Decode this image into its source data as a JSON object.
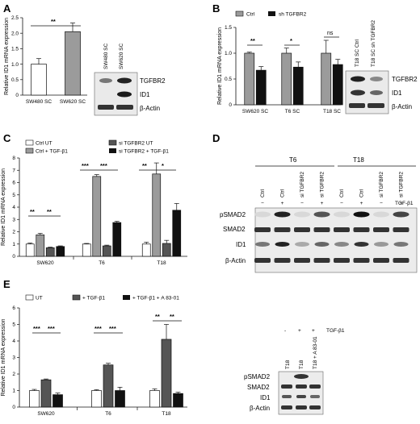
{
  "panels": {
    "A": {
      "letter": "A",
      "ylabel": "Relative ID1 mRNA expression",
      "sig": "**",
      "blot": {
        "lanes": [
          "SW480 SC",
          "SW620 SC"
        ],
        "bands": [
          "TGFBR2",
          "ID1",
          "β-Actin"
        ]
      }
    },
    "B": {
      "letter": "B",
      "ylabel": "Relative ID1 mRNA expression",
      "legend": [
        "Ctrl",
        "sh TGFBR2"
      ],
      "sigs": [
        "**",
        "*",
        "ns"
      ],
      "blot": {
        "lanes": [
          "T18 SC Ctrl",
          "T18 SC sh TGFBR2"
        ],
        "bands": [
          "TGFBR2",
          "ID1",
          "β-Actin"
        ]
      }
    },
    "C": {
      "letter": "C",
      "ylabel": "Relative ID1 mRNA expression",
      "legend": [
        "Ctrl UT",
        "Ctrl + TGF-β1",
        "si TGFBR2 UT",
        "si TGFBR2 + TGF-β1"
      ],
      "sigs": [
        "**",
        "**",
        "***",
        "***",
        "**",
        "*"
      ]
    },
    "D": {
      "letter": "D",
      "groups": [
        "T6",
        "T18"
      ],
      "lanes": [
        "Ctrl",
        "Ctrl",
        "si TGFBR2",
        "si TGFBR2",
        "Ctrl",
        "Ctrl",
        "si TGFBR2",
        "si TGFBR2"
      ],
      "treat": [
        "−",
        "+",
        "−",
        "+",
        "−",
        "+",
        "−",
        "+"
      ],
      "treat_label": "TGF-β1",
      "bands": [
        "pSMAD2",
        "SMAD2",
        "ID1",
        "β-Actin"
      ]
    },
    "E": {
      "letter": "E",
      "ylabel": "Relative ID1 mRNA expression",
      "legend": [
        "UT",
        "+ TGF-β1",
        "+ TGF-β1 + A 83-01"
      ],
      "sigs": [
        "***",
        "***",
        "***",
        "***",
        "**",
        "**"
      ],
      "blot": {
        "treat": [
          "-",
          "+",
          "+"
        ],
        "treat_label": "TGF-β1",
        "lanes": [
          "T18",
          "T18",
          "T18 + A 83-01"
        ],
        "bands": [
          "pSMAD2",
          "SMAD2",
          "ID1",
          "β-Actin"
        ]
      }
    }
  },
  "chart_data": [
    {
      "panel": "A",
      "type": "bar",
      "ylabel": "Relative ID1 mRNA expression",
      "ylim": [
        0,
        2.5
      ],
      "yticks": [
        0,
        0.5,
        1.0,
        1.5,
        2.0,
        2.5
      ],
      "categories": [
        "SW480 SC",
        "SW620 SC"
      ],
      "series": [
        {
          "values": [
            1.0,
            2.05
          ],
          "errors": [
            0.18,
            0.28
          ],
          "colors": [
            "#ffffff",
            "#9b9b9b"
          ]
        }
      ]
    },
    {
      "panel": "B",
      "type": "bar",
      "ylabel": "Relative ID1 mRNA expression",
      "ylim": [
        0,
        1.5
      ],
      "yticks": [
        0,
        0.5,
        1.0,
        1.5
      ],
      "categories": [
        "SW620 SC",
        "T6 SC",
        "T18 SC"
      ],
      "series": [
        {
          "name": "Ctrl",
          "color": "#9b9b9b",
          "values": [
            1.0,
            1.0,
            1.0
          ],
          "errors": [
            0.02,
            0.1,
            0.25
          ]
        },
        {
          "name": "sh TGFBR2",
          "color": "#111111",
          "values": [
            0.67,
            0.73,
            0.78
          ],
          "errors": [
            0.07,
            0.1,
            0.1
          ]
        }
      ]
    },
    {
      "panel": "C",
      "type": "bar",
      "ylabel": "Relative ID1 mRNA expression",
      "ylim": [
        0,
        8
      ],
      "yticks": [
        0,
        1,
        2,
        3,
        4,
        5,
        6,
        7,
        8
      ],
      "categories": [
        "SW620",
        "T6",
        "T18"
      ],
      "series": [
        {
          "name": "Ctrl UT",
          "color": "#ffffff",
          "values": [
            1.0,
            1.0,
            1.0
          ],
          "errors": [
            0.08,
            0.05,
            0.15
          ]
        },
        {
          "name": "Ctrl + TGF-β1",
          "color": "#9b9b9b",
          "values": [
            1.75,
            6.5,
            6.7
          ],
          "errors": [
            0.12,
            0.15,
            0.9
          ]
        },
        {
          "name": "si TGFBR2 UT",
          "color": "#555555",
          "values": [
            0.7,
            0.85,
            1.05
          ],
          "errors": [
            0.05,
            0.06,
            0.25
          ]
        },
        {
          "name": "si TGFBR2 + TGF-β1",
          "color": "#111111",
          "values": [
            0.8,
            2.75,
            3.75
          ],
          "errors": [
            0.05,
            0.1,
            0.55
          ]
        }
      ]
    },
    {
      "panel": "E",
      "type": "bar",
      "ylabel": "Relative ID1 mRNA expression",
      "ylim": [
        0,
        6
      ],
      "yticks": [
        0,
        1,
        2,
        3,
        4,
        5,
        6
      ],
      "categories": [
        "SW620",
        "T6",
        "T18"
      ],
      "series": [
        {
          "name": "UT",
          "color": "#ffffff",
          "values": [
            1.0,
            1.0,
            1.0
          ],
          "errors": [
            0.07,
            0.05,
            0.1
          ]
        },
        {
          "name": "+ TGF-β1",
          "color": "#555555",
          "values": [
            1.65,
            2.55,
            4.1
          ],
          "errors": [
            0.05,
            0.1,
            0.9
          ]
        },
        {
          "name": "+ TGF-β1 + A 83-01",
          "color": "#111111",
          "values": [
            0.75,
            1.0,
            0.82
          ],
          "errors": [
            0.1,
            0.2,
            0.08
          ]
        }
      ]
    }
  ]
}
